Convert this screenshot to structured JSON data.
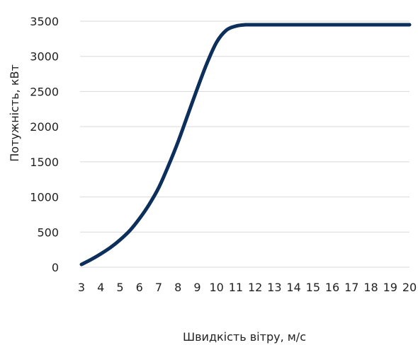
{
  "chart_data": {
    "type": "line",
    "xlabel": "Швидкість вітру, м/с",
    "ylabel": "Потужність, кВт",
    "x": [
      3,
      3.5,
      4,
      4.5,
      5,
      5.5,
      6,
      6.5,
      7,
      7.5,
      8,
      8.5,
      9,
      9.5,
      10,
      10.5,
      11,
      11.5,
      12,
      13,
      14,
      15,
      16,
      17,
      18,
      19,
      20
    ],
    "series": [
      {
        "name": "",
        "color": "#0d2f5c",
        "values": [
          40,
          110,
          190,
          280,
          390,
          520,
          690,
          890,
          1130,
          1440,
          1780,
          2160,
          2540,
          2900,
          3200,
          3370,
          3430,
          3450,
          3450,
          3450,
          3450,
          3450,
          3450,
          3450,
          3450,
          3450,
          3450
        ]
      }
    ],
    "xticks": [
      "3",
      "4",
      "5",
      "6",
      "7",
      "8",
      "9",
      "10",
      "11",
      "12",
      "13",
      "14",
      "15",
      "16",
      "17",
      "18",
      "19",
      "20"
    ],
    "yticks": [
      "0",
      "500",
      "1000",
      "1500",
      "2000",
      "2500",
      "3000",
      "3500"
    ],
    "xlim": [
      3,
      20
    ],
    "ylim": [
      0,
      3500
    ],
    "grid": "horizontal",
    "legend": "none",
    "colors": {
      "line": "#0d2f5c",
      "grid": "#d9d9d9",
      "text": "#222222"
    }
  }
}
